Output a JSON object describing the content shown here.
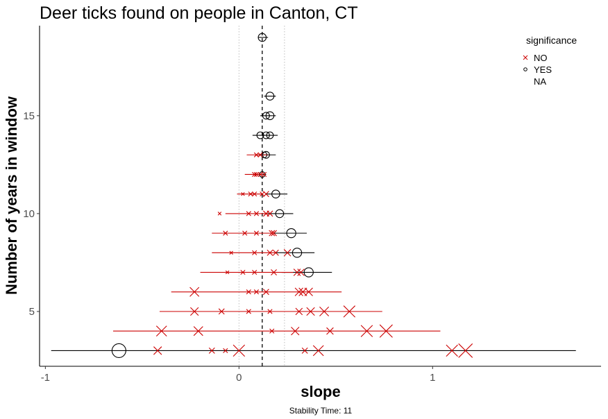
{
  "chart_data": {
    "type": "scatter",
    "title": "Deer ticks found on people in Canton, CT",
    "xlabel": "slope",
    "ylabel": "Number of years in window",
    "caption": "Stability Time: 11",
    "xlim": [
      -1.03,
      1.87
    ],
    "ylim": [
      2.2,
      19.6
    ],
    "x_ticks": [
      -1,
      0,
      1
    ],
    "x_tick_labels": [
      "-1",
      "0",
      "1"
    ],
    "y_ticks": [
      5,
      10,
      15
    ],
    "y_tick_labels": [
      "5",
      "10",
      "15"
    ],
    "grid": false,
    "reference_lines": {
      "dashed": 0.12,
      "dotted": [
        0,
        0.235
      ]
    },
    "legend": {
      "title": "significance",
      "position": "top-right",
      "entries": [
        {
          "label": "NO",
          "shape": "x",
          "color": "#cc0000"
        },
        {
          "label": "YES",
          "shape": "circle",
          "color": "#000000"
        },
        {
          "label": "NA",
          "shape": "none",
          "color": "#000000"
        }
      ]
    },
    "colors": {
      "NO": "#cc0000",
      "YES": "#000000"
    },
    "points": [
      {
        "window": 3,
        "slope": -0.62,
        "ci": [
          -0.97,
          1.74
        ],
        "sig": "YES",
        "size": 10
      },
      {
        "window": 3,
        "slope": -0.42,
        "ci": [
          -0.42,
          -0.42
        ],
        "sig": "NO",
        "size": 5
      },
      {
        "window": 3,
        "slope": -0.14,
        "ci": [
          -0.14,
          -0.14
        ],
        "sig": "NO",
        "size": 3
      },
      {
        "window": 3,
        "slope": -0.07,
        "ci": [
          -0.07,
          -0.07
        ],
        "sig": "NO",
        "size": 2
      },
      {
        "window": 3,
        "slope": 0.0,
        "ci": [
          0.0,
          0.0
        ],
        "sig": "NO",
        "size": 8
      },
      {
        "window": 3,
        "slope": 0.34,
        "ci": [
          0.34,
          0.34
        ],
        "sig": "NO",
        "size": 3
      },
      {
        "window": 3,
        "slope": 0.41,
        "ci": [
          0.41,
          0.41
        ],
        "sig": "NO",
        "size": 7
      },
      {
        "window": 3,
        "slope": 1.1,
        "ci": [
          1.1,
          1.1
        ],
        "sig": "NO",
        "size": 8
      },
      {
        "window": 3,
        "slope": 1.17,
        "ci": [
          1.17,
          1.17
        ],
        "sig": "NO",
        "size": 10
      },
      {
        "window": 4,
        "slope": -0.4,
        "ci": [
          -0.65,
          1.04
        ],
        "sig": "NO",
        "size": 7
      },
      {
        "window": 4,
        "slope": -0.21,
        "ci": [
          -0.21,
          -0.21
        ],
        "sig": "NO",
        "size": 6
      },
      {
        "window": 4,
        "slope": 0.17,
        "ci": [
          0.17,
          0.17
        ],
        "sig": "NO",
        "size": 2
      },
      {
        "window": 4,
        "slope": 0.29,
        "ci": [
          0.29,
          0.29
        ],
        "sig": "NO",
        "size": 5
      },
      {
        "window": 4,
        "slope": 0.47,
        "ci": [
          0.47,
          0.47
        ],
        "sig": "NO",
        "size": 4
      },
      {
        "window": 4,
        "slope": 0.66,
        "ci": [
          0.66,
          0.66
        ],
        "sig": "NO",
        "size": 8
      },
      {
        "window": 4,
        "slope": 0.76,
        "ci": [
          0.76,
          0.76
        ],
        "sig": "NO",
        "size": 9
      },
      {
        "window": 5,
        "slope": -0.23,
        "ci": [
          -0.41,
          0.74
        ],
        "sig": "NO",
        "size": 5
      },
      {
        "window": 5,
        "slope": -0.09,
        "ci": [
          -0.09,
          -0.09
        ],
        "sig": "NO",
        "size": 3
      },
      {
        "window": 5,
        "slope": 0.05,
        "ci": [
          0.05,
          0.05
        ],
        "sig": "NO",
        "size": 2
      },
      {
        "window": 5,
        "slope": 0.16,
        "ci": [
          0.16,
          0.16
        ],
        "sig": "NO",
        "size": 2
      },
      {
        "window": 5,
        "slope": 0.31,
        "ci": [
          0.31,
          0.31
        ],
        "sig": "NO",
        "size": 4
      },
      {
        "window": 5,
        "slope": 0.37,
        "ci": [
          0.37,
          0.37
        ],
        "sig": "NO",
        "size": 5
      },
      {
        "window": 5,
        "slope": 0.44,
        "ci": [
          0.44,
          0.44
        ],
        "sig": "NO",
        "size": 6
      },
      {
        "window": 5,
        "slope": 0.57,
        "ci": [
          0.57,
          0.57
        ],
        "sig": "NO",
        "size": 8
      },
      {
        "window": 6,
        "slope": -0.23,
        "ci": [
          -0.35,
          0.53
        ],
        "sig": "NO",
        "size": 6
      },
      {
        "window": 6,
        "slope": 0.05,
        "ci": [
          0.05,
          0.05
        ],
        "sig": "NO",
        "size": 2
      },
      {
        "window": 6,
        "slope": 0.09,
        "ci": [
          0.09,
          0.09
        ],
        "sig": "NO",
        "size": 2
      },
      {
        "window": 6,
        "slope": 0.14,
        "ci": [
          0.14,
          0.14
        ],
        "sig": "NO",
        "size": 3
      },
      {
        "window": 6,
        "slope": 0.31,
        "ci": [
          0.31,
          0.31
        ],
        "sig": "NO",
        "size": 5
      },
      {
        "window": 6,
        "slope": 0.33,
        "ci": [
          0.33,
          0.33
        ],
        "sig": "NO",
        "size": 5
      },
      {
        "window": 6,
        "slope": 0.36,
        "ci": [
          0.36,
          0.36
        ],
        "sig": "NO",
        "size": 5
      },
      {
        "window": 7,
        "slope": 0.36,
        "ci": [
          0.22,
          0.48
        ],
        "sig": "YES",
        "size": 6
      },
      {
        "window": 7,
        "slope": -0.06,
        "ci": [
          -0.2,
          0.28
        ],
        "sig": "NO",
        "size": 1
      },
      {
        "window": 7,
        "slope": 0.02,
        "ci": [
          0.02,
          0.02
        ],
        "sig": "NO",
        "size": 2
      },
      {
        "window": 7,
        "slope": 0.08,
        "ci": [
          0.08,
          0.08
        ],
        "sig": "NO",
        "size": 2
      },
      {
        "window": 7,
        "slope": 0.18,
        "ci": [
          0.18,
          0.18
        ],
        "sig": "NO",
        "size": 3
      },
      {
        "window": 7,
        "slope": 0.3,
        "ci": [
          0.3,
          0.3
        ],
        "sig": "NO",
        "size": 4
      },
      {
        "window": 7,
        "slope": 0.32,
        "ci": [
          0.32,
          0.32
        ],
        "sig": "NO",
        "size": 4
      },
      {
        "window": 8,
        "slope": 0.3,
        "ci": [
          0.19,
          0.39
        ],
        "sig": "YES",
        "size": 6
      },
      {
        "window": 8,
        "slope": -0.04,
        "ci": [
          -0.14,
          0.19
        ],
        "sig": "NO",
        "size": 1
      },
      {
        "window": 8,
        "slope": 0.08,
        "ci": [
          0.08,
          0.08
        ],
        "sig": "NO",
        "size": 2
      },
      {
        "window": 8,
        "slope": 0.16,
        "ci": [
          0.16,
          0.16
        ],
        "sig": "NO",
        "size": 3
      },
      {
        "window": 8,
        "slope": 0.19,
        "ci": [
          0.19,
          0.19
        ],
        "sig": "NO",
        "size": 3
      },
      {
        "window": 8,
        "slope": 0.25,
        "ci": [
          0.25,
          0.25
        ],
        "sig": "NO",
        "size": 4
      },
      {
        "window": 9,
        "slope": 0.27,
        "ci": [
          0.18,
          0.35
        ],
        "sig": "YES",
        "size": 6
      },
      {
        "window": 9,
        "slope": -0.07,
        "ci": [
          -0.14,
          0.17
        ],
        "sig": "NO",
        "size": 2
      },
      {
        "window": 9,
        "slope": 0.03,
        "ci": [
          0.03,
          0.03
        ],
        "sig": "NO",
        "size": 2
      },
      {
        "window": 9,
        "slope": 0.09,
        "ci": [
          0.09,
          0.09
        ],
        "sig": "NO",
        "size": 2
      },
      {
        "window": 9,
        "slope": 0.17,
        "ci": [
          0.17,
          0.17
        ],
        "sig": "NO",
        "size": 3
      },
      {
        "window": 9,
        "slope": 0.18,
        "ci": [
          0.18,
          0.18
        ],
        "sig": "NO",
        "size": 3
      },
      {
        "window": 10,
        "slope": 0.21,
        "ci": [
          0.14,
          0.28
        ],
        "sig": "YES",
        "size": 5
      },
      {
        "window": 10,
        "slope": -0.1,
        "ci": [
          -0.07,
          0.15
        ],
        "sig": "NO",
        "size": 1
      },
      {
        "window": 10,
        "slope": 0.05,
        "ci": [
          0.05,
          0.05
        ],
        "sig": "NO",
        "size": 2
      },
      {
        "window": 10,
        "slope": 0.09,
        "ci": [
          0.09,
          0.09
        ],
        "sig": "NO",
        "size": 2
      },
      {
        "window": 10,
        "slope": 0.14,
        "ci": [
          0.14,
          0.14
        ],
        "sig": "NO",
        "size": 3
      },
      {
        "window": 10,
        "slope": 0.16,
        "ci": [
          0.16,
          0.16
        ],
        "sig": "NO",
        "size": 3
      },
      {
        "window": 11,
        "slope": 0.19,
        "ci": [
          0.14,
          0.25
        ],
        "sig": "YES",
        "size": 5
      },
      {
        "window": 11,
        "slope": 0.02,
        "ci": [
          -0.01,
          0.12
        ],
        "sig": "NO",
        "size": 1
      },
      {
        "window": 11,
        "slope": 0.06,
        "ci": [
          0.06,
          0.06
        ],
        "sig": "NO",
        "size": 2
      },
      {
        "window": 11,
        "slope": 0.08,
        "ci": [
          0.08,
          0.08
        ],
        "sig": "NO",
        "size": 2
      },
      {
        "window": 11,
        "slope": 0.12,
        "ci": [
          0.12,
          0.12
        ],
        "sig": "NO",
        "size": 2
      },
      {
        "window": 11,
        "slope": 0.14,
        "ci": [
          0.14,
          0.14
        ],
        "sig": "NO",
        "size": 3
      },
      {
        "window": 12,
        "slope": 0.12,
        "ci": [
          0.1,
          0.14
        ],
        "sig": "YES",
        "size": 3
      },
      {
        "window": 12,
        "slope": 0.08,
        "ci": [
          0.03,
          0.12
        ],
        "sig": "NO",
        "size": 2
      },
      {
        "window": 12,
        "slope": 0.09,
        "ci": [
          0.09,
          0.09
        ],
        "sig": "NO",
        "size": 2
      },
      {
        "window": 12,
        "slope": 0.11,
        "ci": [
          0.11,
          0.11
        ],
        "sig": "NO",
        "size": 2
      },
      {
        "window": 12,
        "slope": 0.13,
        "ci": [
          0.13,
          0.13
        ],
        "sig": "NO",
        "size": 2
      },
      {
        "window": 13,
        "slope": 0.14,
        "ci": [
          0.1,
          0.19
        ],
        "sig": "YES",
        "size": 4
      },
      {
        "window": 13,
        "slope": 0.13,
        "ci": [
          0.13,
          0.13
        ],
        "sig": "YES",
        "size": 3
      },
      {
        "window": 13,
        "slope": 0.09,
        "ci": [
          0.04,
          0.15
        ],
        "sig": "NO",
        "size": 2
      },
      {
        "window": 13,
        "slope": 0.11,
        "ci": [
          0.11,
          0.11
        ],
        "sig": "NO",
        "size": 2
      },
      {
        "window": 14,
        "slope": 0.11,
        "ci": [
          0.07,
          0.2
        ],
        "sig": "YES",
        "size": 4
      },
      {
        "window": 14,
        "slope": 0.14,
        "ci": [
          0.14,
          0.14
        ],
        "sig": "YES",
        "size": 4
      },
      {
        "window": 14,
        "slope": 0.16,
        "ci": [
          0.16,
          0.16
        ],
        "sig": "YES",
        "size": 4
      },
      {
        "window": 15,
        "slope": 0.14,
        "ci": [
          0.11,
          0.19
        ],
        "sig": "YES",
        "size": 4
      },
      {
        "window": 15,
        "slope": 0.16,
        "ci": [
          0.16,
          0.16
        ],
        "sig": "YES",
        "size": 5
      },
      {
        "window": 16,
        "slope": 0.16,
        "ci": [
          0.13,
          0.19
        ],
        "sig": "YES",
        "size": 5
      },
      {
        "window": 19,
        "slope": 0.12,
        "ci": [
          0.1,
          0.15
        ],
        "sig": "YES",
        "size": 5
      }
    ]
  }
}
